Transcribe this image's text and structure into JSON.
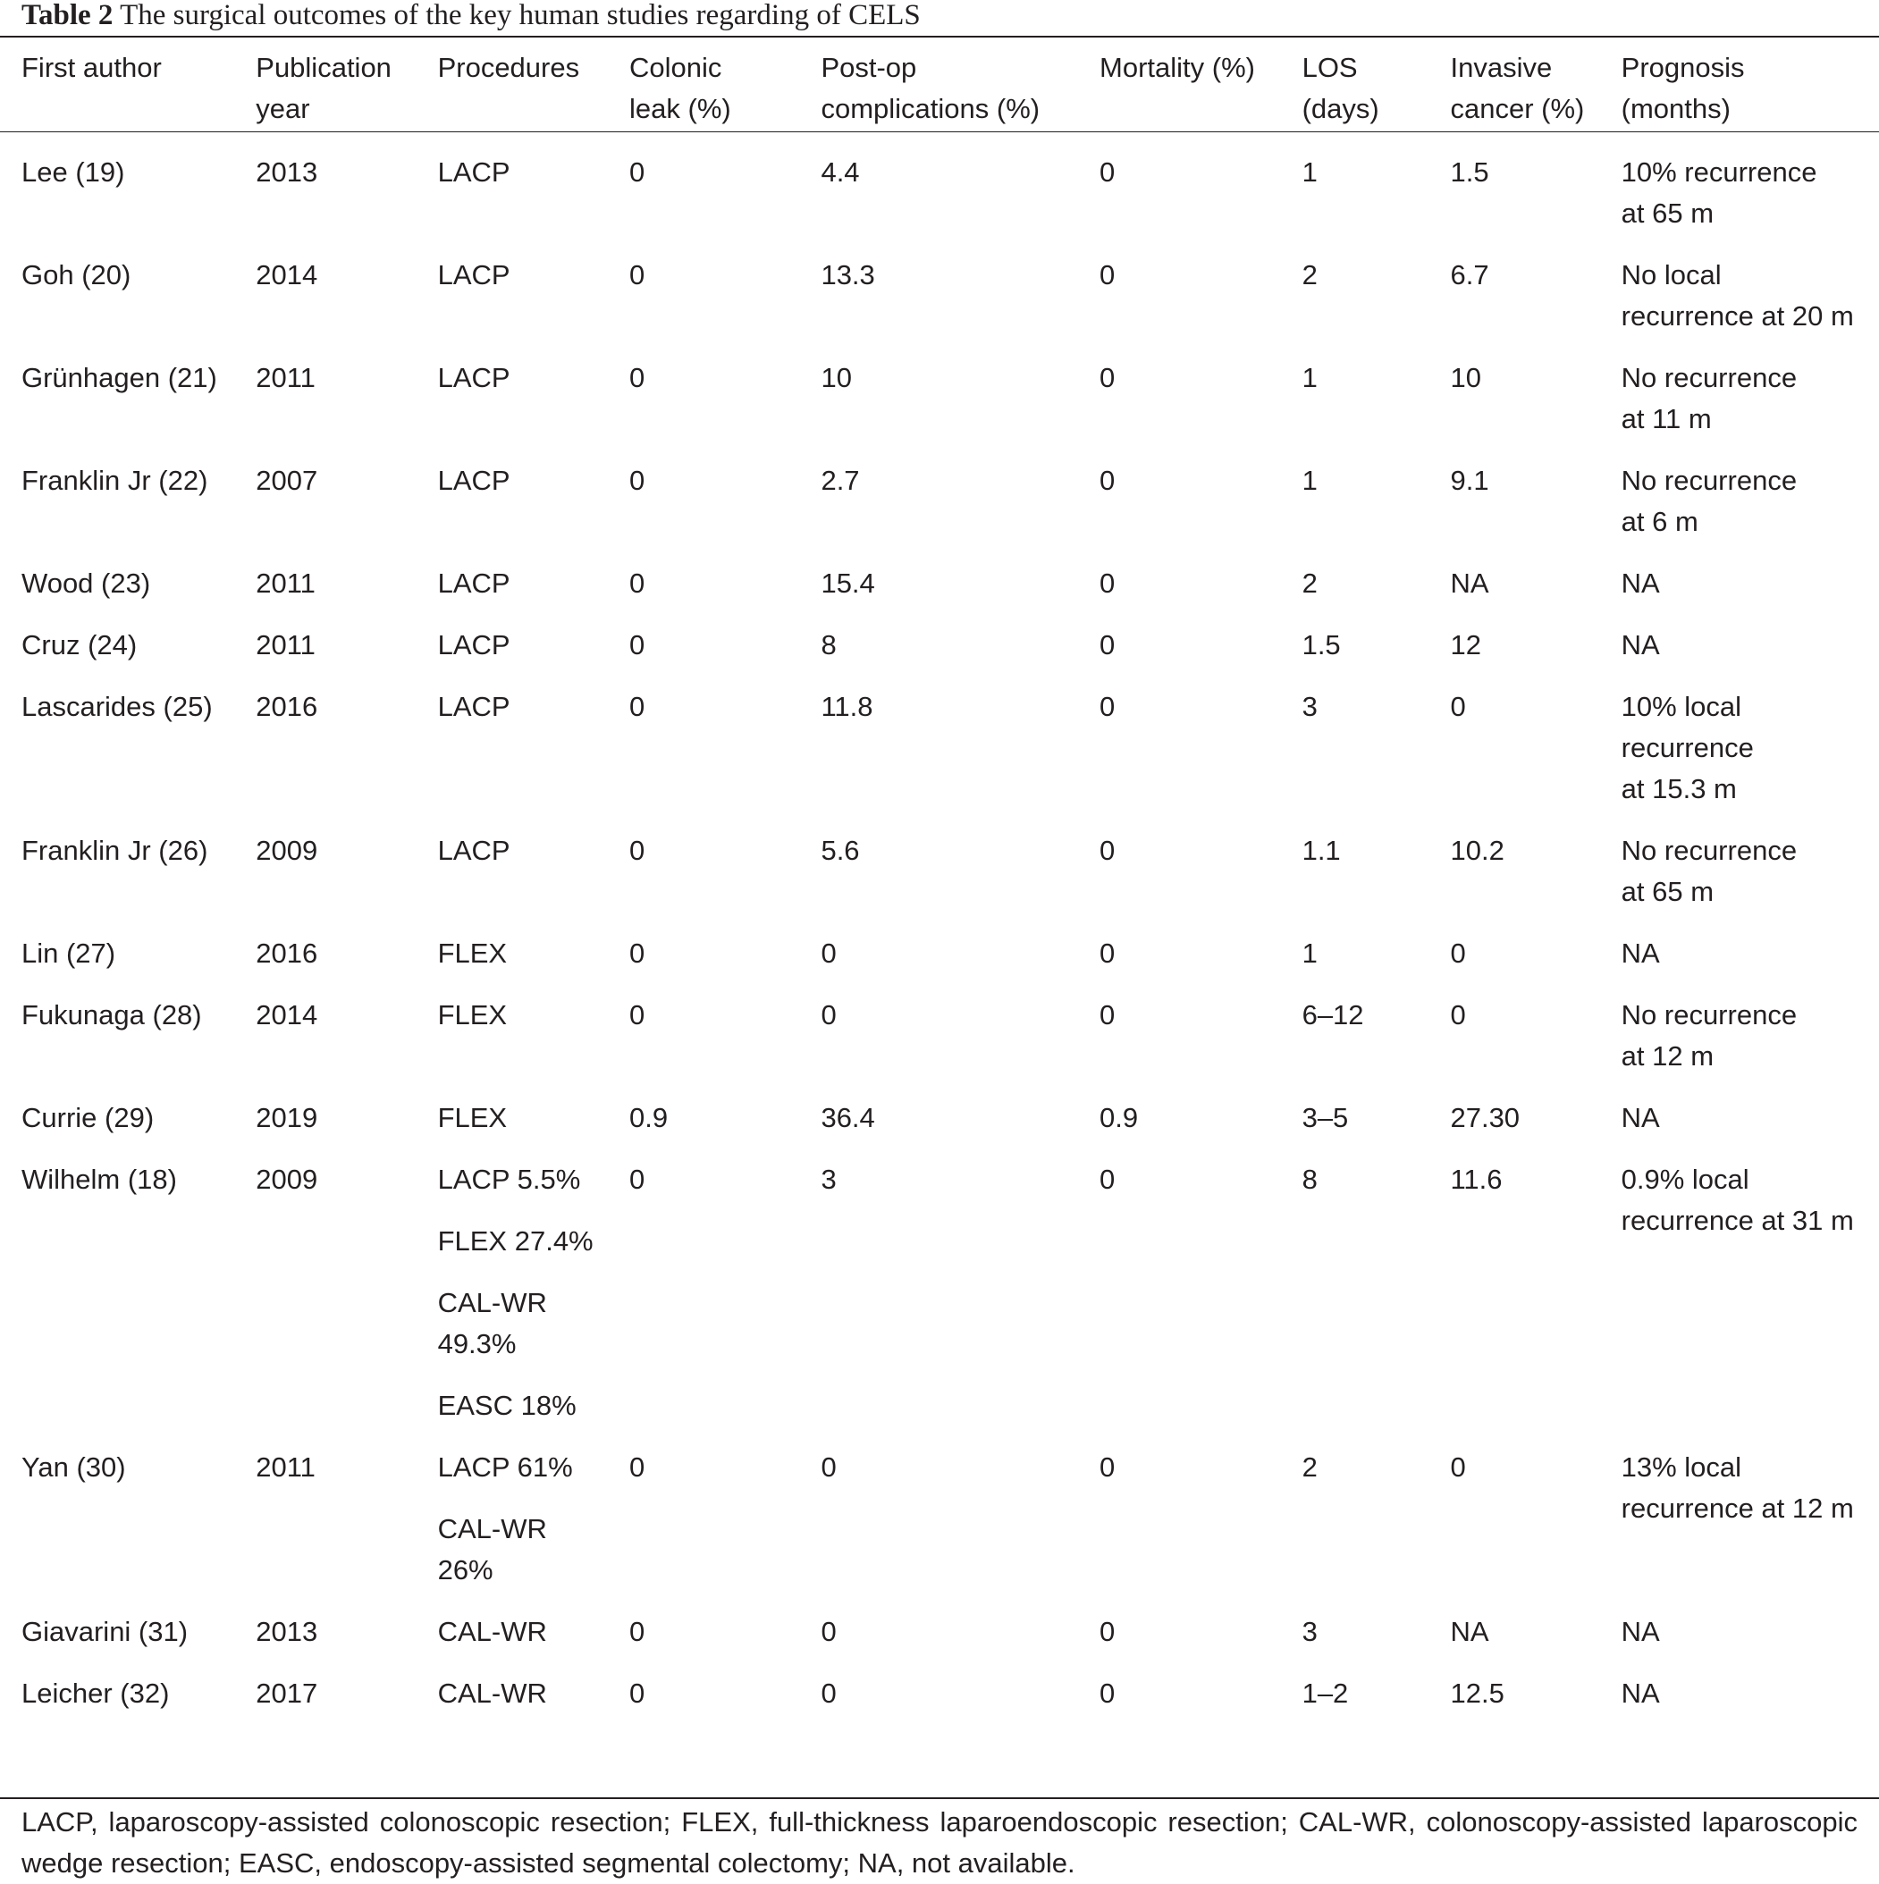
{
  "caption": {
    "label": "Table 2",
    "text": "The surgical outcomes of the key human studies regarding of CELS"
  },
  "headers": [
    [
      "First author"
    ],
    [
      "Publication",
      "year"
    ],
    [
      "Procedures"
    ],
    [
      "Colonic",
      "leak (%)"
    ],
    [
      "Post-op",
      "complications (%)"
    ],
    [
      "Mortality (%)"
    ],
    [
      "LOS",
      "(days)"
    ],
    [
      "Invasive",
      "cancer (%)"
    ],
    [
      "Prognosis",
      "(months)"
    ]
  ],
  "rows": [
    {
      "author": "Lee (19)",
      "year": "2013",
      "procedures": [
        "LACP"
      ],
      "leak": "0",
      "complications": "4.4",
      "mortality": "0",
      "los": "1",
      "invasive": "1.5",
      "prognosis": [
        "10% recurrence",
        "at 65 m"
      ]
    },
    {
      "author": "Goh (20)",
      "year": "2014",
      "procedures": [
        "LACP"
      ],
      "leak": "0",
      "complications": "13.3",
      "mortality": "0",
      "los": "2",
      "invasive": "6.7",
      "prognosis": [
        "No local",
        "recurrence at 20 m"
      ]
    },
    {
      "author": "Grünhagen (21)",
      "year": "2011",
      "procedures": [
        "LACP"
      ],
      "leak": "0",
      "complications": "10",
      "mortality": "0",
      "los": "1",
      "invasive": "10",
      "prognosis": [
        "No recurrence",
        "at 11 m"
      ]
    },
    {
      "author": "Franklin Jr (22)",
      "year": "2007",
      "procedures": [
        "LACP"
      ],
      "leak": "0",
      "complications": "2.7",
      "mortality": "0",
      "los": "1",
      "invasive": "9.1",
      "prognosis": [
        "No recurrence",
        "at 6 m"
      ]
    },
    {
      "author": "Wood (23)",
      "year": "2011",
      "procedures": [
        "LACP"
      ],
      "leak": "0",
      "complications": "15.4",
      "mortality": "0",
      "los": "2",
      "invasive": "NA",
      "prognosis": [
        "NA"
      ]
    },
    {
      "author": "Cruz (24)",
      "year": "2011",
      "procedures": [
        "LACP"
      ],
      "leak": "0",
      "complications": "8",
      "mortality": "0",
      "los": "1.5",
      "invasive": "12",
      "prognosis": [
        "NA"
      ]
    },
    {
      "author": "Lascarides (25)",
      "year": "2016",
      "procedures": [
        "LACP"
      ],
      "leak": "0",
      "complications": "11.8",
      "mortality": "0",
      "los": "3",
      "invasive": "0",
      "prognosis": [
        "10% local",
        "recurrence",
        "at 15.3 m"
      ]
    },
    {
      "author": "Franklin Jr (26)",
      "year": "2009",
      "procedures": [
        "LACP"
      ],
      "leak": "0",
      "complications": "5.6",
      "mortality": "0",
      "los": "1.1",
      "invasive": "10.2",
      "prognosis": [
        "No recurrence",
        "at 65 m"
      ]
    },
    {
      "author": "Lin (27)",
      "year": "2016",
      "procedures": [
        "FLEX"
      ],
      "leak": "0",
      "complications": "0",
      "mortality": "0",
      "los": "1",
      "invasive": "0",
      "prognosis": [
        "NA"
      ]
    },
    {
      "author": "Fukunaga (28)",
      "year": "2014",
      "procedures": [
        "FLEX"
      ],
      "leak": "0",
      "complications": "0",
      "mortality": "0",
      "los": "6–12",
      "invasive": "0",
      "prognosis": [
        "No recurrence",
        "at 12 m"
      ]
    },
    {
      "author": "Currie (29)",
      "year": "2019",
      "procedures": [
        "FLEX"
      ],
      "leak": "0.9",
      "complications": "36.4",
      "mortality": "0.9",
      "los": "3–5",
      "invasive": "27.30",
      "prognosis": [
        "NA"
      ]
    },
    {
      "author": "Wilhelm (18)",
      "year": "2009",
      "procedures": [
        "LACP 5.5%",
        "FLEX 27.4%",
        "CAL-WR\n49.3%",
        "EASC 18%"
      ],
      "leak": "0",
      "complications": "3",
      "mortality": "0",
      "los": "8",
      "invasive": "11.6",
      "prognosis": [
        "0.9% local",
        "recurrence at 31 m"
      ]
    },
    {
      "author": "Yan (30)",
      "year": "2011",
      "procedures": [
        "LACP 61%",
        "CAL-WR\n26%"
      ],
      "leak": "0",
      "complications": "0",
      "mortality": "0",
      "los": "2",
      "invasive": "0",
      "prognosis": [
        "13% local",
        "recurrence at 12 m"
      ]
    },
    {
      "author": "Giavarini (31)",
      "year": "2013",
      "procedures": [
        "CAL-WR"
      ],
      "leak": "0",
      "complications": "0",
      "mortality": "0",
      "los": "3",
      "invasive": "NA",
      "prognosis": [
        "NA"
      ]
    },
    {
      "author": "Leicher (32)",
      "year": "2017",
      "procedures": [
        "CAL-WR"
      ],
      "leak": "0",
      "complications": "0",
      "mortality": "0",
      "los": "1–2",
      "invasive": "12.5",
      "prognosis": [
        "NA"
      ]
    }
  ],
  "footnote": "LACP, laparoscopy-assisted colonoscopic resection; FLEX, full-thickness laparoendoscopic resection; CAL-WR, colonoscopy-assisted laparoscopic wedge resection; EASC, endoscopy-assisted segmental colectomy; NA, not available."
}
